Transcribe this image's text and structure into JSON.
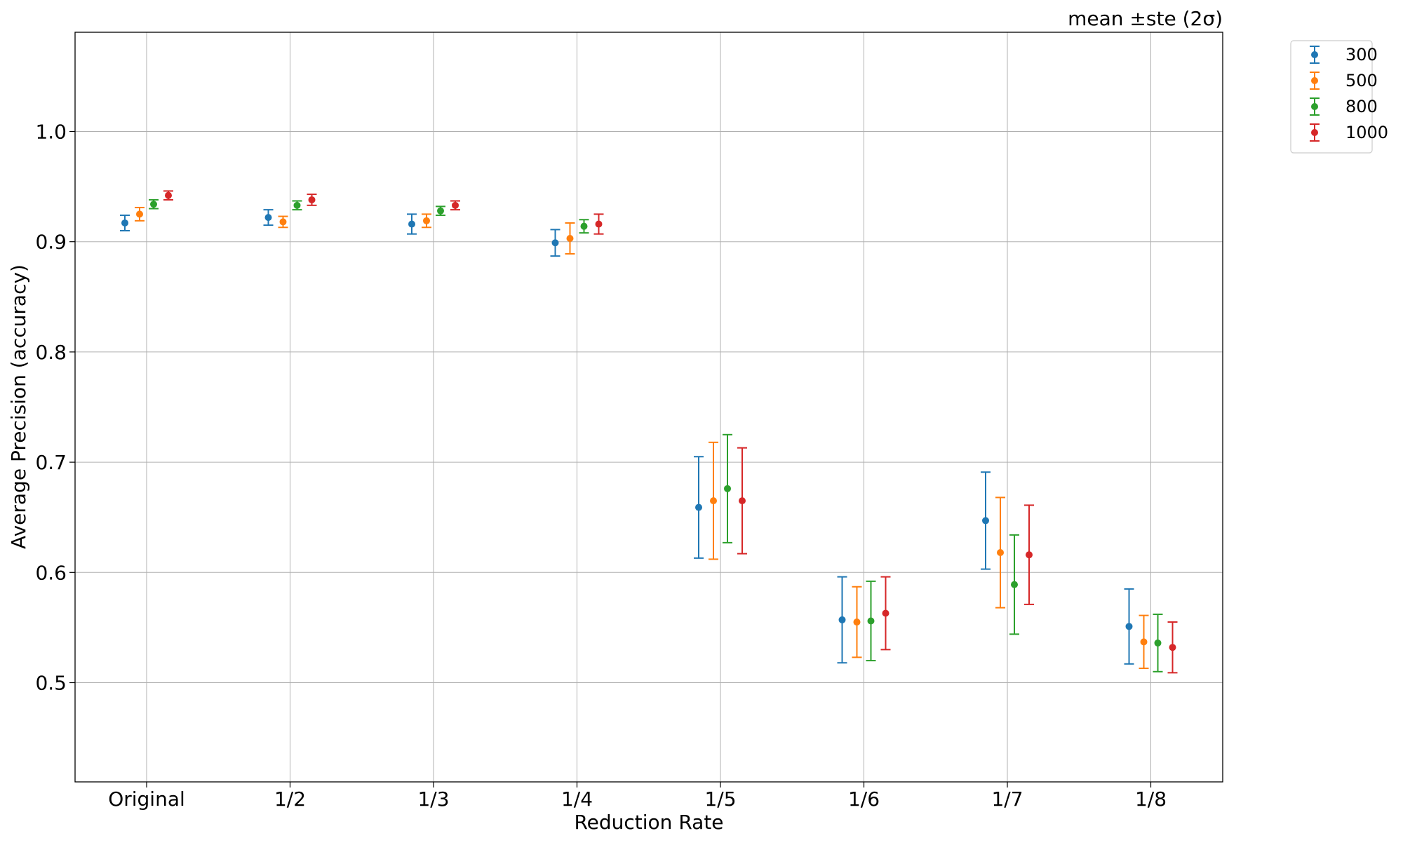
{
  "chart_data": {
    "type": "scatter",
    "title": "",
    "annotation": "mean ±ste (2σ)",
    "xlabel": "Reduction Rate",
    "ylabel": "Average Precision (accuracy)",
    "categories": [
      "Original",
      "1/2",
      "1/3",
      "1/4",
      "1/5",
      "1/6",
      "1/7",
      "1/8"
    ],
    "ylim": [
      0.41,
      1.09
    ],
    "yticks": [
      0.5,
      0.6,
      0.7,
      0.8,
      0.9,
      1.0
    ],
    "ytick_labels": [
      "0.5",
      "0.6",
      "0.7",
      "0.8",
      "0.9",
      "1.0"
    ],
    "grid": true,
    "legend_position": "outside-top-right",
    "series": [
      {
        "name": "300",
        "color": "#1f77b4",
        "values": [
          0.917,
          0.922,
          0.916,
          0.899,
          0.659,
          0.557,
          0.647,
          0.551
        ],
        "errors": [
          0.007,
          0.007,
          0.009,
          0.012,
          0.046,
          0.039,
          0.044,
          0.034
        ]
      },
      {
        "name": "500",
        "color": "#ff7f0e",
        "values": [
          0.925,
          0.918,
          0.919,
          0.903,
          0.665,
          0.555,
          0.618,
          0.537
        ],
        "errors": [
          0.006,
          0.005,
          0.006,
          0.014,
          0.053,
          0.032,
          0.05,
          0.024
        ]
      },
      {
        "name": "800",
        "color": "#2ca02c",
        "values": [
          0.934,
          0.933,
          0.928,
          0.914,
          0.676,
          0.556,
          0.589,
          0.536
        ],
        "errors": [
          0.004,
          0.004,
          0.004,
          0.006,
          0.049,
          0.036,
          0.045,
          0.026
        ]
      },
      {
        "name": "1000",
        "color": "#d62728",
        "values": [
          0.942,
          0.938,
          0.933,
          0.916,
          0.665,
          0.563,
          0.616,
          0.532
        ],
        "errors": [
          0.004,
          0.005,
          0.004,
          0.009,
          0.048,
          0.033,
          0.045,
          0.023
        ]
      }
    ]
  }
}
